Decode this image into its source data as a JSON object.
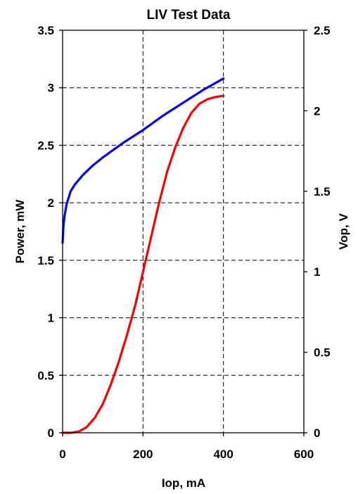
{
  "chart_data": {
    "type": "line",
    "title": "LIV Test Data",
    "xlabel": "Iop, mA",
    "ylabel": "Power, mW",
    "y2label": "Vop, V",
    "xlim": [
      0,
      600
    ],
    "ylim": [
      0,
      3.5
    ],
    "y2lim": [
      0,
      2.5
    ],
    "x_ticks": [
      "0",
      "200",
      "400",
      "600"
    ],
    "y_ticks": [
      "0",
      "0.5",
      "1",
      "1.5",
      "2",
      "2.5",
      "3",
      "3.5"
    ],
    "y2_ticks": [
      "0",
      "0.5",
      "1",
      "1.5",
      "2",
      "2.5"
    ],
    "grid": true,
    "legend": "none",
    "series": [
      {
        "axis": "left",
        "color": "#ff0000",
        "x": [
          0,
          20,
          40,
          60,
          80,
          100,
          120,
          140,
          160,
          180,
          200,
          220,
          240,
          260,
          280,
          300,
          320,
          340,
          360,
          380,
          400
        ],
        "y": [
          0,
          0,
          0.01,
          0.05,
          0.13,
          0.25,
          0.42,
          0.62,
          0.85,
          1.1,
          1.4,
          1.7,
          2.0,
          2.27,
          2.48,
          2.65,
          2.78,
          2.86,
          2.9,
          2.92,
          2.93
        ]
      },
      {
        "axis": "right",
        "color": "#0000ff",
        "x": [
          0,
          2,
          5,
          10,
          20,
          30,
          50,
          75,
          100,
          150,
          200,
          250,
          300,
          350,
          400
        ],
        "y": [
          1.18,
          1.28,
          1.35,
          1.42,
          1.5,
          1.54,
          1.6,
          1.66,
          1.71,
          1.8,
          1.88,
          1.97,
          2.05,
          2.13,
          2.2
        ]
      }
    ]
  }
}
